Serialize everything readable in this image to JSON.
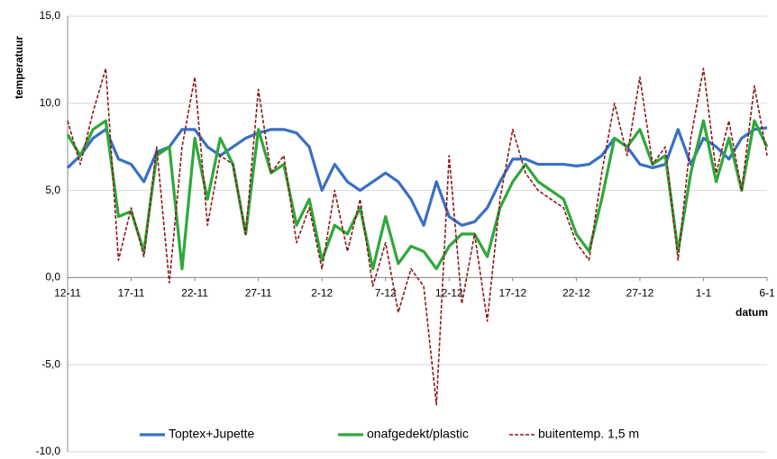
{
  "chart_data": {
    "type": "line",
    "y_label": "temperatuur",
    "x_label": "datum",
    "categories": [
      "12-11",
      null,
      null,
      null,
      null,
      "17-11",
      null,
      null,
      null,
      null,
      "22-11",
      null,
      null,
      null,
      null,
      "27-11",
      null,
      null,
      null,
      null,
      "2-12",
      null,
      null,
      null,
      null,
      "7-12",
      null,
      null,
      null,
      null,
      "12-12",
      null,
      null,
      null,
      null,
      "17-12",
      null,
      null,
      null,
      null,
      "22-12",
      null,
      null,
      null,
      null,
      "27-12",
      null,
      null,
      null,
      null,
      "1-1",
      null,
      null,
      null,
      null,
      "6-1"
    ],
    "series": [
      {
        "name": "Toptex+Jupette",
        "color": "#3a6fc4",
        "line_style": "solid",
        "values": [
          6.3,
          7,
          8,
          8.5,
          6.8,
          6.5,
          5.5,
          7.2,
          7.5,
          8.5,
          8.5,
          7.5,
          7,
          7.5,
          8,
          8.3,
          8.5,
          8.5,
          8.3,
          7.5,
          5,
          6.5,
          5.5,
          5,
          5.5,
          6,
          5.5,
          4.5,
          3,
          5.5,
          3.5,
          3,
          3.2,
          4,
          5.5,
          6.8,
          6.8,
          6.5,
          6.5,
          6.5,
          6.4,
          6.5,
          7,
          8,
          7.5,
          6.5,
          6.3,
          6.5,
          8.5,
          6.5,
          8,
          7.5,
          6.8,
          8,
          8.5,
          8.6
        ]
      },
      {
        "name": "onafgedekt/plastic",
        "color": "#2ea83a",
        "line_style": "solid",
        "values": [
          8.2,
          7,
          8.5,
          9,
          3.5,
          3.8,
          1.5,
          7,
          7.5,
          0.5,
          8,
          4.5,
          8,
          6.5,
          2.5,
          8.5,
          6,
          6.5,
          3,
          4.5,
          1,
          3,
          2.5,
          4,
          0.5,
          3.5,
          0.8,
          1.8,
          1.5,
          0.5,
          1.8,
          2.5,
          2.5,
          1.2,
          4,
          5.5,
          6.5,
          5.5,
          5,
          4.5,
          2.5,
          1.5,
          4.5,
          8,
          7.5,
          8.5,
          6.5,
          7,
          1.5,
          6,
          9,
          5.5,
          8,
          5,
          9,
          7.5
        ]
      },
      {
        "name": "buitentemp. 1,5 m",
        "color": "#8b1a1a",
        "line_style": "dashed",
        "values": [
          9,
          6.5,
          9.5,
          12,
          1,
          4,
          1.2,
          7.5,
          -0.3,
          7.5,
          11.5,
          3,
          7,
          6.5,
          2.5,
          10.8,
          6,
          7,
          2,
          4,
          0.5,
          5,
          1.5,
          4.5,
          -0.5,
          2,
          -2,
          0.5,
          -0.5,
          -7.3,
          7,
          -1.5,
          2.5,
          -2.5,
          4.5,
          8.5,
          6,
          5,
          4.5,
          4,
          2,
          1,
          6,
          10,
          7,
          11.5,
          6.5,
          7.5,
          1,
          8,
          12,
          6,
          9,
          5,
          11,
          7
        ]
      }
    ],
    "ylim": [
      -10,
      15
    ],
    "yticks": [
      {
        "value": -10,
        "label": "-10,0"
      },
      {
        "value": -5,
        "label": "-5,0"
      },
      {
        "value": 0,
        "label": "0,0"
      },
      {
        "value": 5,
        "label": "5,0"
      },
      {
        "value": 10,
        "label": "10,0"
      },
      {
        "value": 15,
        "label": "15,0"
      }
    ],
    "grid": true,
    "legend": "bottom"
  }
}
